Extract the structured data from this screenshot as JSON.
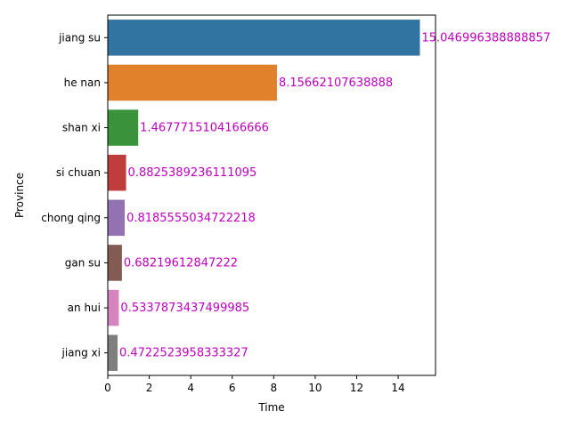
{
  "chart_data": {
    "type": "bar",
    "orientation": "horizontal",
    "xlabel": "Time",
    "ylabel": "Province",
    "xlim": [
      0,
      15.8
    ],
    "x_ticks": [
      0,
      2,
      4,
      6,
      8,
      10,
      12,
      14
    ],
    "grid": false,
    "legend": "none",
    "label_color": "#bf00bf",
    "categories": [
      "jiang su",
      "he nan",
      "shan xi",
      "si chuan",
      "chong qing",
      "gan su",
      "an hui",
      "jiang xi"
    ],
    "values": [
      15.046996388888857,
      8.15662107638888,
      1.4677715104166666,
      0.8825389236111095,
      0.8185555034722218,
      0.68219612847222,
      0.5337873437499985,
      0.4722523958333327
    ],
    "value_labels": [
      "15.046996388888857",
      "8.15662107638888",
      "1.4677715104166666",
      "0.8825389236111095",
      "0.8185555034722218",
      "0.68219612847222",
      "0.5337873437499985",
      "0.4722523958333327"
    ],
    "colors": [
      "#3274a1",
      "#e1812c",
      "#3a923a",
      "#c03d3e",
      "#9372b2",
      "#845b53",
      "#d684bd",
      "#7f7f7f"
    ]
  }
}
